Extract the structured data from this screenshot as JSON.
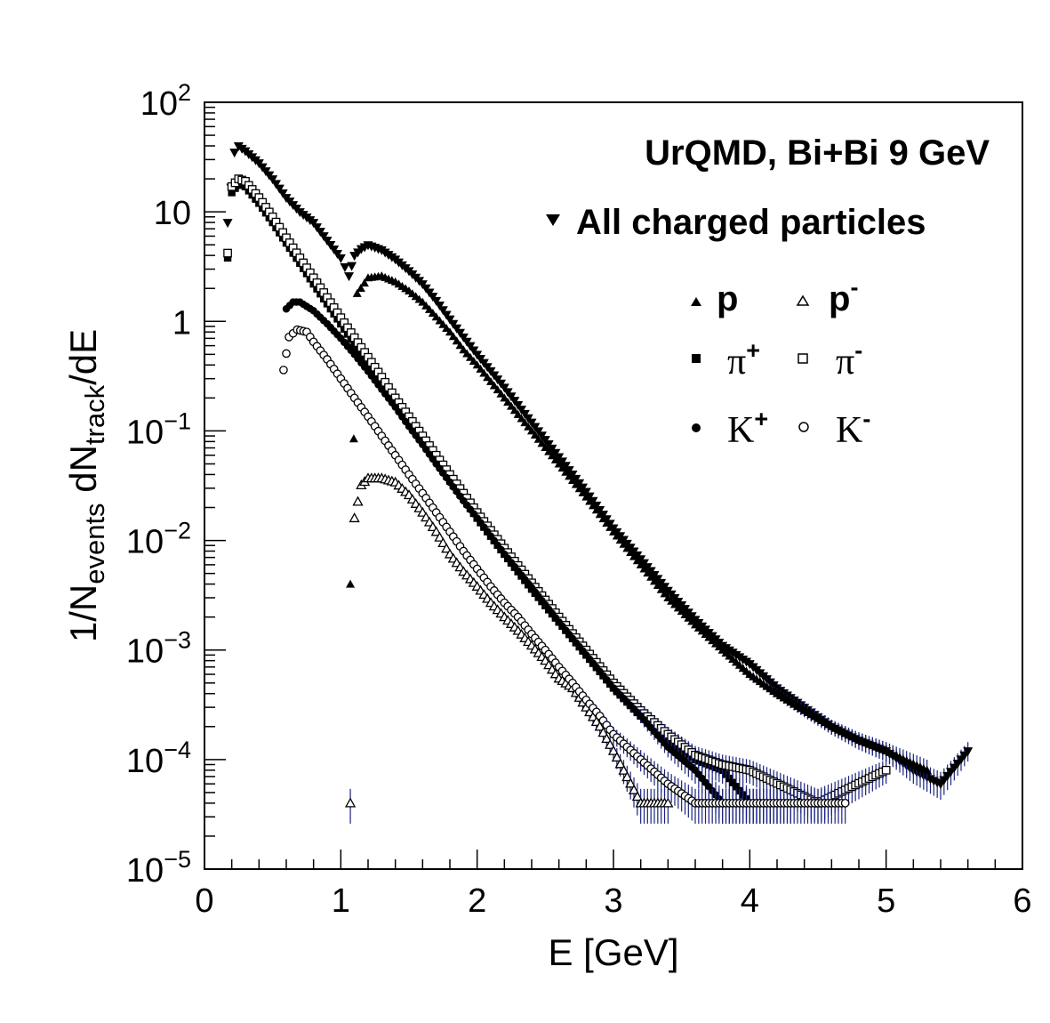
{
  "chart_data": {
    "type": "scatter",
    "title": "UrQMD, Bi+Bi 9 GeV",
    "xlabel": "E  [GeV]",
    "ylabel": "1/N_events dN_track/dE",
    "ylabel_parts": {
      "a": "1/N",
      "a_sub": "events",
      "b": " dN",
      "b_sub": "track",
      "c": "/dE"
    },
    "xlim": [
      0,
      6
    ],
    "ylim": [
      1e-05,
      100
    ],
    "yscale": "log",
    "x_ticks": [
      "0",
      "1",
      "2",
      "3",
      "4",
      "5",
      "6"
    ],
    "y_ticks": [
      {
        "base": "10",
        "exp": "2"
      },
      {
        "base": "10",
        "exp": ""
      },
      {
        "base": "1",
        "exp": ""
      },
      {
        "base": "10",
        "exp": "−1"
      },
      {
        "base": "10",
        "exp": "−2"
      },
      {
        "base": "10",
        "exp": "−3"
      },
      {
        "base": "10",
        "exp": "−4"
      },
      {
        "base": "10",
        "exp": "−5"
      }
    ],
    "series": [
      {
        "name": "All charged particles",
        "legend": "All charged particles",
        "marker": "triangle-down",
        "filled": true,
        "points": [
          [
            0.17,
            8
          ],
          [
            0.22,
            35
          ],
          [
            0.25,
            40
          ],
          [
            0.3,
            36
          ],
          [
            0.4,
            28
          ],
          [
            0.5,
            20
          ],
          [
            0.6,
            13.5
          ],
          [
            0.7,
            10
          ],
          [
            0.8,
            8
          ],
          [
            0.9,
            5.5
          ],
          [
            1.0,
            3.8
          ],
          [
            1.06,
            2.6
          ],
          [
            1.1,
            4.0
          ],
          [
            1.15,
            4.6
          ],
          [
            1.2,
            5.0
          ],
          [
            1.3,
            4.5
          ],
          [
            1.4,
            3.7
          ],
          [
            1.5,
            2.9
          ],
          [
            1.6,
            2.2
          ],
          [
            1.7,
            1.55
          ],
          [
            1.8,
            1.05
          ],
          [
            1.9,
            0.72
          ],
          [
            2.0,
            0.5
          ],
          [
            2.2,
            0.25
          ],
          [
            2.4,
            0.12
          ],
          [
            2.6,
            0.058
          ],
          [
            2.8,
            0.028
          ],
          [
            3.0,
            0.013
          ],
          [
            3.2,
            0.0068
          ],
          [
            3.4,
            0.0035
          ],
          [
            3.6,
            0.0019
          ],
          [
            3.8,
            0.0011
          ],
          [
            4.0,
            0.00075
          ],
          [
            4.2,
            0.00045
          ],
          [
            4.4,
            0.0003
          ],
          [
            4.6,
            0.0002
          ],
          [
            4.8,
            0.00015
          ],
          [
            5.0,
            0.00012
          ],
          [
            5.2,
            8e-05
          ],
          [
            5.4,
            6e-05
          ],
          [
            5.6,
            0.00012
          ]
        ]
      },
      {
        "name": "p",
        "legend": "p",
        "marker": "triangle-up",
        "filled": true,
        "points": [
          [
            1.07,
            0.004
          ],
          [
            1.12,
            1.8
          ],
          [
            1.2,
            2.5
          ],
          [
            1.3,
            2.6
          ],
          [
            1.4,
            2.3
          ],
          [
            1.5,
            1.9
          ],
          [
            1.6,
            1.5
          ],
          [
            1.7,
            1.1
          ],
          [
            1.8,
            0.8
          ],
          [
            1.9,
            0.55
          ],
          [
            2.0,
            0.4
          ],
          [
            2.2,
            0.2
          ],
          [
            2.4,
            0.1
          ],
          [
            2.6,
            0.05
          ],
          [
            2.8,
            0.025
          ],
          [
            3.0,
            0.012
          ],
          [
            3.2,
            0.006
          ],
          [
            3.4,
            0.003
          ],
          [
            3.6,
            0.0017
          ],
          [
            3.8,
            0.001
          ],
          [
            4.0,
            0.0006
          ],
          [
            4.2,
            0.0004
          ],
          [
            4.4,
            0.00028
          ],
          [
            4.6,
            0.0002
          ],
          [
            4.8,
            0.00015
          ],
          [
            5.0,
            0.00012
          ],
          [
            5.3,
            8e-05
          ]
        ]
      },
      {
        "name": "p-",
        "legend": "p",
        "legend_sup": "-",
        "marker": "triangle-up",
        "filled": false,
        "points": [
          [
            1.07,
            4e-05
          ],
          [
            1.1,
            0.016
          ],
          [
            1.15,
            0.032
          ],
          [
            1.2,
            0.037
          ],
          [
            1.3,
            0.037
          ],
          [
            1.4,
            0.034
          ],
          [
            1.5,
            0.026
          ],
          [
            1.6,
            0.018
          ],
          [
            1.7,
            0.012
          ],
          [
            1.8,
            0.0075
          ],
          [
            1.9,
            0.0052
          ],
          [
            2.0,
            0.0038
          ],
          [
            2.1,
            0.0027
          ],
          [
            2.2,
            0.002
          ],
          [
            2.3,
            0.0015
          ],
          [
            2.4,
            0.0011
          ],
          [
            2.5,
            0.0008
          ],
          [
            2.6,
            0.00055
          ],
          [
            2.7,
            0.00045
          ],
          [
            2.8,
            0.0003
          ],
          [
            2.9,
            0.0002
          ],
          [
            3.0,
            0.00012
          ],
          [
            3.2,
            4e-05
          ],
          [
            3.4,
            4e-05
          ]
        ]
      },
      {
        "name": "pi+",
        "legend": "π",
        "legend_sup": "+",
        "marker": "square",
        "filled": true,
        "points": [
          [
            0.17,
            3.8
          ],
          [
            0.2,
            15
          ],
          [
            0.25,
            18
          ],
          [
            0.3,
            17
          ],
          [
            0.4,
            12
          ],
          [
            0.5,
            8
          ],
          [
            0.6,
            5.2
          ],
          [
            0.7,
            3.4
          ],
          [
            0.8,
            2.2
          ],
          [
            0.9,
            1.45
          ],
          [
            1.0,
            0.95
          ],
          [
            1.1,
            0.62
          ],
          [
            1.2,
            0.41
          ],
          [
            1.3,
            0.27
          ],
          [
            1.4,
            0.18
          ],
          [
            1.5,
            0.12
          ],
          [
            1.6,
            0.08
          ],
          [
            1.7,
            0.053
          ],
          [
            1.8,
            0.035
          ],
          [
            1.9,
            0.024
          ],
          [
            2.0,
            0.016
          ],
          [
            2.2,
            0.0075
          ],
          [
            2.4,
            0.0036
          ],
          [
            2.6,
            0.0018
          ],
          [
            2.8,
            0.0009
          ],
          [
            3.0,
            0.00045
          ],
          [
            3.2,
            0.00025
          ],
          [
            3.4,
            0.00015
          ],
          [
            3.6,
            0.0001
          ],
          [
            3.8,
            8e-05
          ],
          [
            4.0,
            4e-05
          ],
          [
            4.3,
            4e-05
          ]
        ]
      },
      {
        "name": "pi-",
        "legend": "π",
        "legend_sup": "-",
        "marker": "square",
        "filled": false,
        "points": [
          [
            0.17,
            4.2
          ],
          [
            0.2,
            17
          ],
          [
            0.25,
            20
          ],
          [
            0.3,
            19
          ],
          [
            0.4,
            13.5
          ],
          [
            0.5,
            9
          ],
          [
            0.6,
            5.8
          ],
          [
            0.7,
            3.8
          ],
          [
            0.8,
            2.5
          ],
          [
            0.9,
            1.65
          ],
          [
            1.0,
            1.08
          ],
          [
            1.1,
            0.71
          ],
          [
            1.2,
            0.47
          ],
          [
            1.3,
            0.31
          ],
          [
            1.4,
            0.2
          ],
          [
            1.5,
            0.135
          ],
          [
            1.6,
            0.09
          ],
          [
            1.7,
            0.06
          ],
          [
            1.8,
            0.04
          ],
          [
            1.9,
            0.027
          ],
          [
            2.0,
            0.018
          ],
          [
            2.2,
            0.0085
          ],
          [
            2.4,
            0.0041
          ],
          [
            2.6,
            0.002
          ],
          [
            2.8,
            0.001
          ],
          [
            3.0,
            0.0005
          ],
          [
            3.2,
            0.00028
          ],
          [
            3.4,
            0.00017
          ],
          [
            3.6,
            0.00011
          ],
          [
            3.8,
            9e-05
          ],
          [
            4.0,
            8e-05
          ],
          [
            4.5,
            4e-05
          ],
          [
            5.0,
            8e-05
          ]
        ]
      },
      {
        "name": "K+",
        "legend": "K",
        "legend_sup": "+",
        "marker": "circle",
        "filled": true,
        "points": [
          [
            0.6,
            1.3
          ],
          [
            0.65,
            1.5
          ],
          [
            0.7,
            1.5
          ],
          [
            0.8,
            1.25
          ],
          [
            0.9,
            0.95
          ],
          [
            1.0,
            0.7
          ],
          [
            1.1,
            0.5
          ],
          [
            1.2,
            0.35
          ],
          [
            1.3,
            0.24
          ],
          [
            1.4,
            0.165
          ],
          [
            1.5,
            0.11
          ],
          [
            1.6,
            0.075
          ],
          [
            1.7,
            0.05
          ],
          [
            1.8,
            0.034
          ],
          [
            1.9,
            0.023
          ],
          [
            2.0,
            0.016
          ],
          [
            2.2,
            0.0075
          ],
          [
            2.4,
            0.0037
          ],
          [
            2.6,
            0.0018
          ],
          [
            2.8,
            0.0009
          ],
          [
            3.0,
            0.00045
          ],
          [
            3.2,
            0.00025
          ],
          [
            3.4,
            0.00013
          ],
          [
            3.6,
            8e-05
          ],
          [
            3.8,
            4e-05
          ],
          [
            4.2,
            4e-05
          ]
        ]
      },
      {
        "name": "K-",
        "legend": "K",
        "legend_sup": "-",
        "marker": "circle",
        "filled": false,
        "points": [
          [
            0.58,
            0.36
          ],
          [
            0.62,
            0.72
          ],
          [
            0.68,
            0.84
          ],
          [
            0.75,
            0.8
          ],
          [
            0.8,
            0.65
          ],
          [
            0.9,
            0.45
          ],
          [
            1.0,
            0.3
          ],
          [
            1.1,
            0.2
          ],
          [
            1.2,
            0.135
          ],
          [
            1.3,
            0.09
          ],
          [
            1.4,
            0.06
          ],
          [
            1.5,
            0.04
          ],
          [
            1.6,
            0.027
          ],
          [
            1.7,
            0.018
          ],
          [
            1.8,
            0.012
          ],
          [
            1.9,
            0.008
          ],
          [
            2.0,
            0.0055
          ],
          [
            2.1,
            0.0038
          ],
          [
            2.2,
            0.0027
          ],
          [
            2.3,
            0.002
          ],
          [
            2.4,
            0.0014
          ],
          [
            2.5,
            0.001
          ],
          [
            2.6,
            0.0007
          ],
          [
            2.7,
            0.0005
          ],
          [
            2.8,
            0.00035
          ],
          [
            2.9,
            0.00025
          ],
          [
            3.0,
            0.00017
          ],
          [
            3.2,
            0.0001
          ],
          [
            3.4,
            6e-05
          ],
          [
            3.6,
            4e-05
          ],
          [
            3.8,
            4e-05
          ],
          [
            4.7,
            4e-05
          ]
        ]
      }
    ]
  }
}
